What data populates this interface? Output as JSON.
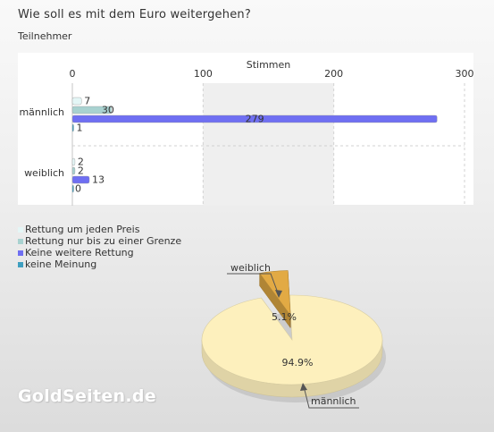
{
  "title": "Wie soll es mit dem Euro weitergehen?",
  "subtitle": "Teilnehmer",
  "watermark": "GoldSeiten.de",
  "chart_data": [
    {
      "type": "bar",
      "orientation": "horizontal",
      "xlabel": "Stimmen",
      "xlim": [
        0,
        300
      ],
      "xticks": [
        0,
        100,
        200,
        300
      ],
      "grid": true,
      "categories": [
        "männlich",
        "weiblich"
      ],
      "series": [
        {
          "name": "Rettung um jeden Preis",
          "values": [
            7,
            2
          ],
          "color": "#e4f6f6"
        },
        {
          "name": "Rettung nur bis zu einer Grenze",
          "values": [
            30,
            2
          ],
          "color": "#a8d2d0"
        },
        {
          "name": "Keine weitere Rettung",
          "values": [
            279,
            13
          ],
          "color": "#6f6ff2"
        },
        {
          "name": "keine Meinung",
          "values": [
            1,
            0
          ],
          "color": "#3f9fc0"
        }
      ],
      "legend_position": "bottom-left"
    },
    {
      "type": "pie",
      "labels": [
        "weiblich",
        "männlich"
      ],
      "values": [
        5.1,
        94.9
      ],
      "value_labels": [
        "5.1%",
        "94.9%"
      ],
      "colors": [
        "#e2aa44",
        "#fdf0bd"
      ]
    }
  ]
}
